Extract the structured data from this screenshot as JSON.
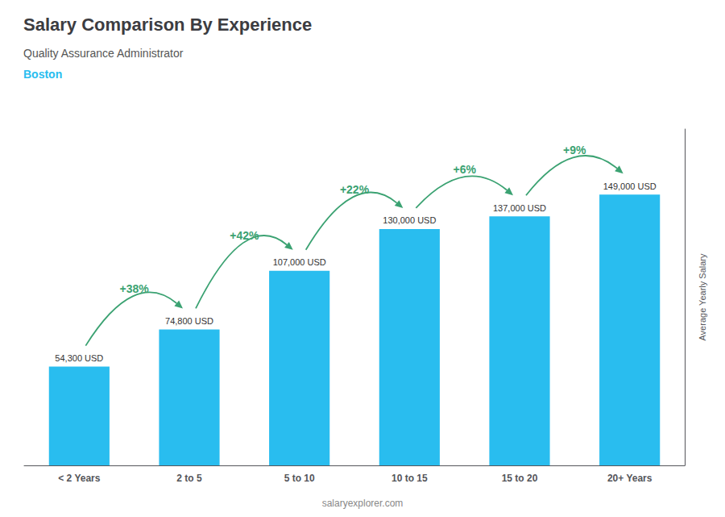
{
  "chart_data": {
    "type": "bar",
    "title": "Salary Comparison By Experience",
    "subtitle": [
      "Quality Assurance Administrator",
      "Boston"
    ],
    "categories": [
      "< 2 Years",
      "2 to 5",
      "5 to 10",
      "10 to 15",
      "15 to 20",
      "20+ Years"
    ],
    "values": [
      54300,
      74800,
      107000,
      130000,
      137000,
      149000
    ],
    "value_labels": [
      "54,300 USD",
      "74,800 USD",
      "107,000 USD",
      "130,000 USD",
      "137,000 USD",
      "149,000 USD"
    ],
    "data_labels": true,
    "color": "#29BDEF",
    "annotations": [
      "+38%",
      "+42%",
      "+22%",
      "+6%",
      "+9%"
    ],
    "ylabel": "Average Yearly Salary",
    "caption": "salaryexplorer.com",
    "ylim": [
      0,
      185000
    ],
    "yticks": [],
    "tick_labels": "x",
    "grid": false
  }
}
